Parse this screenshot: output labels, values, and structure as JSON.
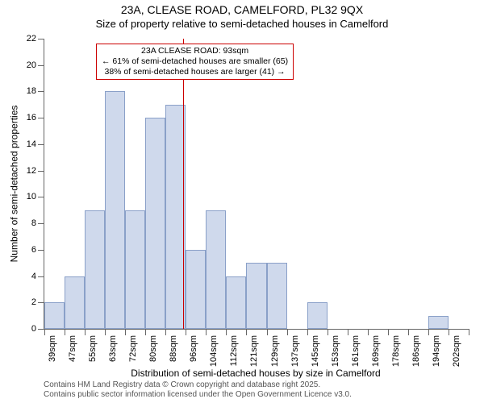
{
  "title": {
    "line1": "23A, CLEASE ROAD, CAMELFORD, PL32 9QX",
    "line2": "Size of property relative to semi-detached houses in Camelford"
  },
  "chart": {
    "type": "histogram",
    "background_color": "#ffffff",
    "bar_fill": "#cfd9ec",
    "bar_border": "#8aa0c8",
    "marker_color": "#cc0000",
    "axis_color": "#666666",
    "ylim": [
      0,
      22
    ],
    "ytick_step": 2,
    "yticks": [
      0,
      2,
      4,
      6,
      8,
      10,
      12,
      14,
      16,
      18,
      20,
      22
    ],
    "y_label": "Number of semi-detached properties",
    "x_label": "Distribution of semi-detached houses by size in Camelford",
    "title_fontsize": 14,
    "subtitle_fontsize": 13,
    "label_fontsize": 12,
    "tick_fontsize": 11,
    "categories": [
      "39sqm",
      "47sqm",
      "55sqm",
      "63sqm",
      "72sqm",
      "80sqm",
      "88sqm",
      "96sqm",
      "104sqm",
      "112sqm",
      "121sqm",
      "129sqm",
      "137sqm",
      "145sqm",
      "153sqm",
      "161sqm",
      "169sqm",
      "178sqm",
      "186sqm",
      "194sqm",
      "202sqm"
    ],
    "values": [
      2,
      4,
      9,
      18,
      9,
      16,
      17,
      6,
      9,
      4,
      5,
      5,
      0,
      2,
      0,
      0,
      0,
      0,
      0,
      1,
      0
    ],
    "bar_width_ratio": 1.0,
    "marker_x_category_index": 6.86
  },
  "callout": {
    "line1": "23A CLEASE ROAD: 93sqm",
    "line2": "← 61% of semi-detached houses are smaller (65)",
    "line3": "38% of semi-detached houses are larger (41) →"
  },
  "footer": {
    "line1": "Contains HM Land Registry data © Crown copyright and database right 2025.",
    "line2": "Contains public sector information licensed under the Open Government Licence v3.0."
  }
}
